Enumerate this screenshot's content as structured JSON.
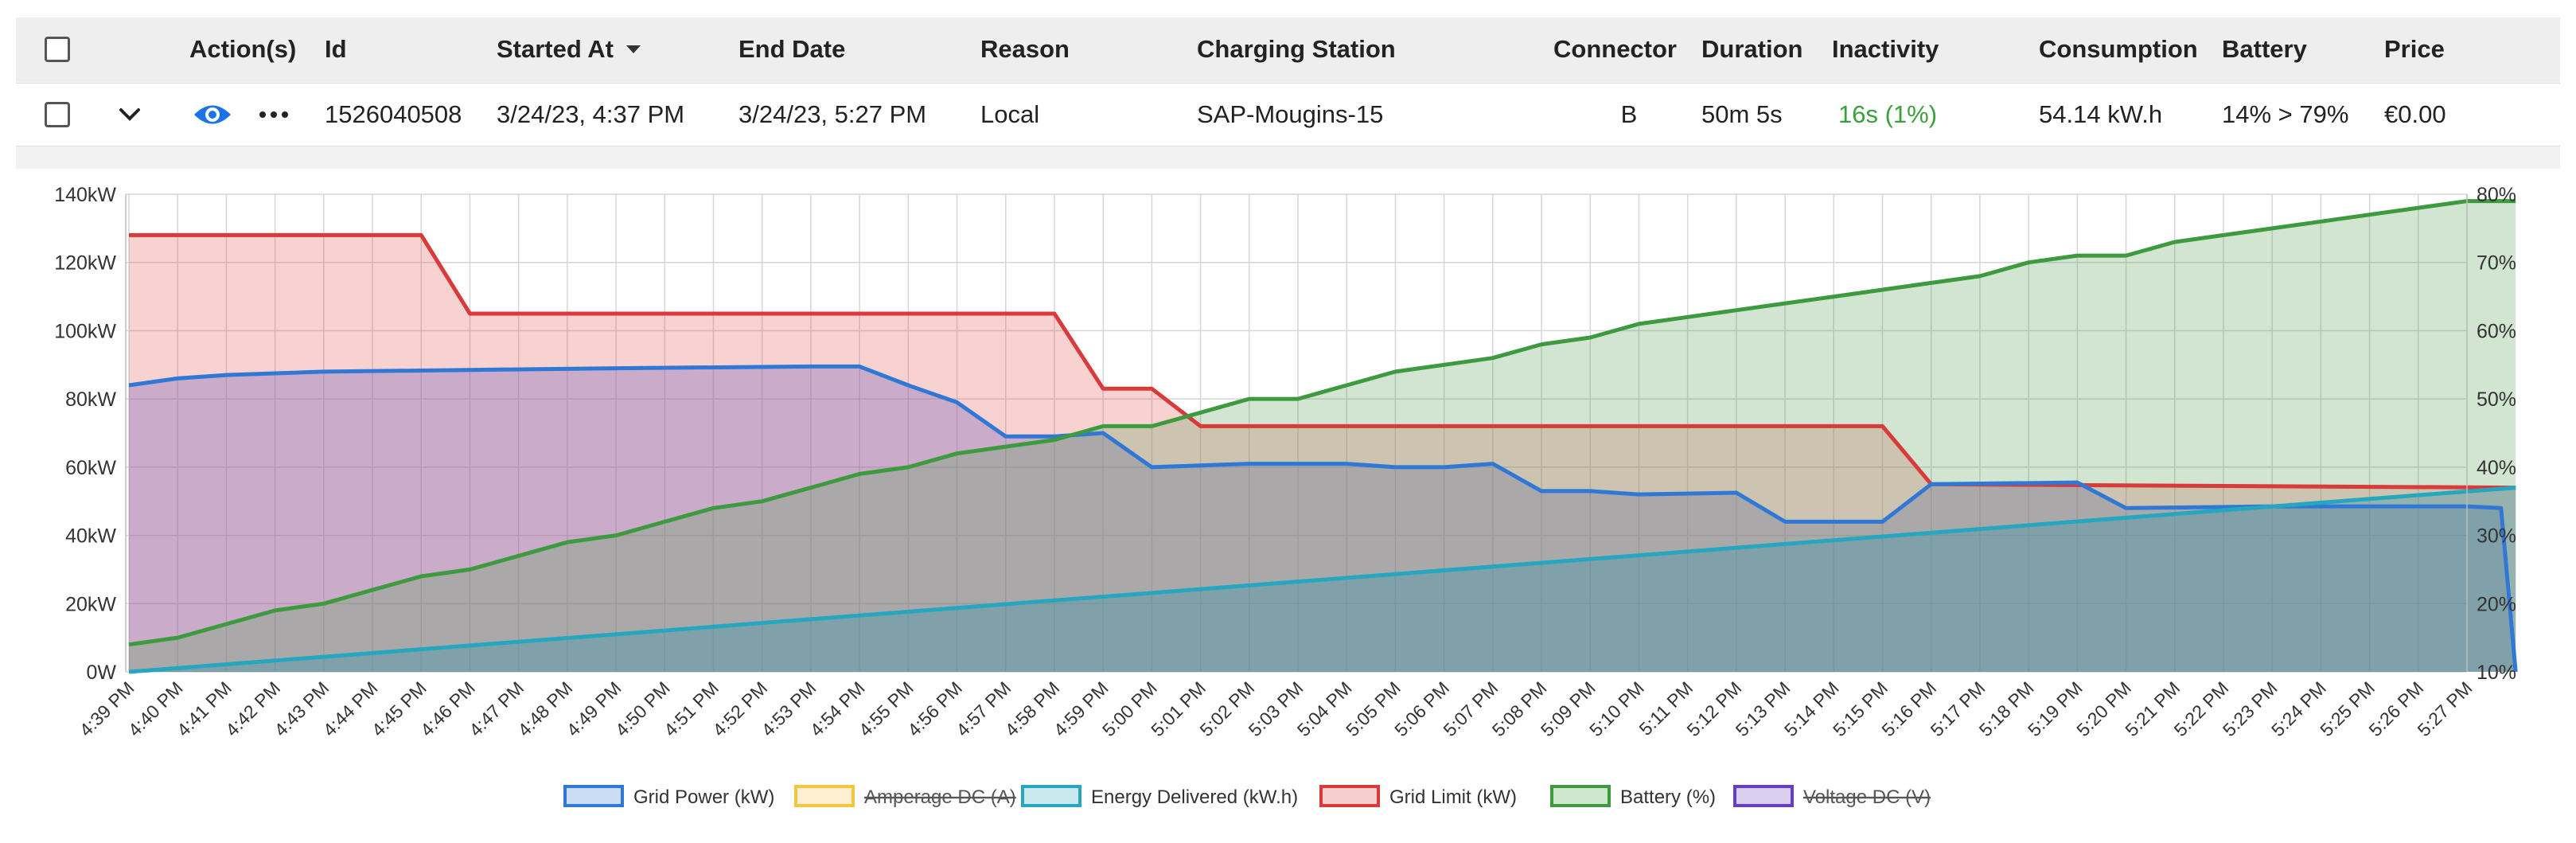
{
  "table": {
    "columns": [
      {
        "key": "select",
        "label": ""
      },
      {
        "key": "actions",
        "label": "Action(s)"
      },
      {
        "key": "id",
        "label": "Id"
      },
      {
        "key": "started_at",
        "label": "Started At"
      },
      {
        "key": "end_date",
        "label": "End Date"
      },
      {
        "key": "reason",
        "label": "Reason"
      },
      {
        "key": "charging_station",
        "label": "Charging Station"
      },
      {
        "key": "connector",
        "label": "Connector"
      },
      {
        "key": "duration",
        "label": "Duration"
      },
      {
        "key": "inactivity",
        "label": "Inactivity"
      },
      {
        "key": "consumption",
        "label": "Consumption"
      },
      {
        "key": "battery",
        "label": "Battery"
      },
      {
        "key": "price",
        "label": "Price"
      }
    ],
    "sort_icon": "caret-down-icon",
    "row": {
      "id": "1526040508",
      "started_at": "3/24/23, 4:37 PM",
      "end_date": "3/24/23, 5:27 PM",
      "reason": "Local",
      "charging_station": "SAP-Mougins-15",
      "connector": "B",
      "duration": "50m 5s",
      "inactivity": "16s (1%)",
      "consumption": "54.14 kW.h",
      "battery": "14% > 79%",
      "price": "€0.00",
      "icons": [
        "chevron-down-icon",
        "eye-icon",
        "more-dots-icon"
      ]
    },
    "colors": {
      "inactivity": "#3aa03a",
      "view_icon": "#1a73e8"
    }
  },
  "chart_data": {
    "type": "area",
    "categories": [
      "4:39 PM",
      "4:40 PM",
      "4:41 PM",
      "4:42 PM",
      "4:43 PM",
      "4:44 PM",
      "4:45 PM",
      "4:46 PM",
      "4:47 PM",
      "4:48 PM",
      "4:49 PM",
      "4:50 PM",
      "4:51 PM",
      "4:52 PM",
      "4:53 PM",
      "4:54 PM",
      "4:55 PM",
      "4:56 PM",
      "4:57 PM",
      "4:58 PM",
      "4:59 PM",
      "5:00 PM",
      "5:01 PM",
      "5:02 PM",
      "5:03 PM",
      "5:04 PM",
      "5:05 PM",
      "5:06 PM",
      "5:07 PM",
      "5:08 PM",
      "5:09 PM",
      "5:10 PM",
      "5:11 PM",
      "5:12 PM",
      "5:13 PM",
      "5:14 PM",
      "5:15 PM",
      "5:16 PM",
      "5:17 PM",
      "5:18 PM",
      "5:19 PM",
      "5:20 PM",
      "5:21 PM",
      "5:22 PM",
      "5:23 PM",
      "5:24 PM",
      "5:25 PM",
      "5:26 PM",
      "5:27 PM"
    ],
    "y_left": {
      "ticks": [
        "0W",
        "20kW",
        "40kW",
        "60kW",
        "80kW",
        "100kW",
        "120kW",
        "140kW"
      ],
      "range": [
        0,
        140
      ]
    },
    "y_right": {
      "ticks": [
        "10%",
        "20%",
        "30%",
        "40%",
        "50%",
        "60%",
        "70%",
        "80%"
      ],
      "range": [
        10,
        80
      ]
    },
    "grid": true,
    "legend_position": "bottom",
    "legend": [
      {
        "name": "Grid Power (kW)",
        "color": "#2f78d6",
        "hidden": false
      },
      {
        "name": "Amperage DC (A)",
        "color": "#f6c343",
        "hidden": true
      },
      {
        "name": "Energy Delivered (kW.h)",
        "color": "#26a6bf",
        "hidden": false
      },
      {
        "name": "Grid Limit (kW)",
        "color": "#d93a3a",
        "hidden": false
      },
      {
        "name": "Battery (%)",
        "color": "#3e9a3e",
        "hidden": false
      },
      {
        "name": "Voltage DC (V)",
        "color": "#6a3fbf",
        "hidden": true
      }
    ],
    "series": [
      {
        "key": "grid_limit",
        "axis": "left",
        "color": "#d93a3a",
        "fill": "rgba(230,90,90,0.28)",
        "points": [
          [
            0,
            128
          ],
          [
            6,
            128
          ],
          [
            7,
            105
          ],
          [
            19,
            105
          ],
          [
            20,
            83
          ],
          [
            21,
            83
          ],
          [
            22,
            72
          ],
          [
            36,
            72
          ],
          [
            37,
            55
          ],
          [
            49,
            54
          ]
        ]
      },
      {
        "key": "grid_power",
        "axis": "left",
        "color": "#2f78d6",
        "fill": "rgba(120,100,190,0.35)",
        "points": [
          [
            0,
            84
          ],
          [
            1,
            86
          ],
          [
            2,
            87
          ],
          [
            3,
            87.5
          ],
          [
            4,
            88
          ],
          [
            7,
            88.5
          ],
          [
            10,
            89
          ],
          [
            14,
            89.5
          ],
          [
            15,
            89.5
          ],
          [
            16,
            84
          ],
          [
            17,
            79
          ],
          [
            18,
            69
          ],
          [
            19,
            69
          ],
          [
            20,
            70
          ],
          [
            21,
            60
          ],
          [
            22,
            60.5
          ],
          [
            23,
            61
          ],
          [
            25,
            61
          ],
          [
            26,
            60
          ],
          [
            27,
            60
          ],
          [
            28,
            61
          ],
          [
            29,
            53
          ],
          [
            30,
            53
          ],
          [
            31,
            52
          ],
          [
            33,
            52.5
          ],
          [
            34,
            44
          ],
          [
            35,
            44
          ],
          [
            36,
            44
          ],
          [
            37,
            55
          ],
          [
            40,
            55.5
          ],
          [
            41,
            48
          ],
          [
            44,
            48.5
          ],
          [
            48,
            48.5
          ],
          [
            48.7,
            48
          ],
          [
            49,
            0
          ]
        ]
      },
      {
        "key": "battery",
        "axis": "right",
        "color": "#3e9a3e",
        "fill": "rgba(90,160,90,0.28)",
        "points": [
          [
            0,
            14
          ],
          [
            1,
            15
          ],
          [
            2,
            17
          ],
          [
            3,
            19
          ],
          [
            4,
            20
          ],
          [
            5,
            22
          ],
          [
            6,
            24
          ],
          [
            7,
            25
          ],
          [
            8,
            27
          ],
          [
            9,
            29
          ],
          [
            10,
            30
          ],
          [
            11,
            32
          ],
          [
            12,
            34
          ],
          [
            13,
            35
          ],
          [
            14,
            37
          ],
          [
            15,
            39
          ],
          [
            16,
            40
          ],
          [
            17,
            42
          ],
          [
            18,
            43
          ],
          [
            19,
            44
          ],
          [
            20,
            46
          ],
          [
            21,
            46
          ],
          [
            22,
            48
          ],
          [
            23,
            50
          ],
          [
            24,
            50
          ],
          [
            25,
            52
          ],
          [
            26,
            54
          ],
          [
            27,
            55
          ],
          [
            28,
            56
          ],
          [
            29,
            58
          ],
          [
            30,
            59
          ],
          [
            31,
            61
          ],
          [
            32,
            62
          ],
          [
            33,
            63
          ],
          [
            34,
            64
          ],
          [
            35,
            65
          ],
          [
            36,
            66
          ],
          [
            37,
            67
          ],
          [
            38,
            68
          ],
          [
            39,
            70
          ],
          [
            40,
            71
          ],
          [
            41,
            71
          ],
          [
            42,
            73
          ],
          [
            43,
            74
          ],
          [
            44,
            75
          ],
          [
            45,
            76
          ],
          [
            46,
            77
          ],
          [
            47,
            78
          ],
          [
            48,
            79
          ],
          [
            49,
            79
          ]
        ]
      },
      {
        "key": "energy_delivered",
        "axis": "left",
        "color": "#26a6bf",
        "fill": "rgba(60,150,170,0.38)",
        "points": [
          [
            0,
            0
          ],
          [
            49,
            54
          ]
        ]
      }
    ]
  }
}
